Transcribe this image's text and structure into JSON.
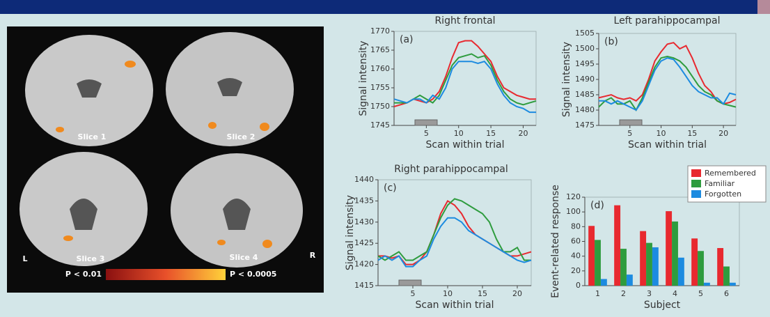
{
  "brain_panel": {
    "slice_labels": [
      "Slice 1",
      "Slice 2",
      "Slice 3",
      "Slice 4"
    ],
    "left": "L",
    "right": "R",
    "p_low": "P < 0.01",
    "p_high": "P < 0.0005"
  },
  "chart_data": [
    {
      "type": "line",
      "title": "Right frontal",
      "panel_label": "(a)",
      "x_label": "Scan within trial",
      "y_label": "Signal intensity",
      "x": [
        0,
        1,
        2,
        3,
        4,
        5,
        6,
        7,
        8,
        9,
        10,
        11,
        12,
        13,
        14,
        15,
        16,
        17,
        18,
        19,
        20,
        21,
        22
      ],
      "xlim": [
        0,
        22
      ],
      "xticks": [
        5,
        10,
        15,
        20
      ],
      "ylim": [
        1745,
        1770
      ],
      "yticks": [
        1745,
        1750,
        1755,
        1760,
        1765,
        1770
      ],
      "series": [
        {
          "color": "#e8292f",
          "values": [
            1750,
            1750.5,
            1751,
            1752,
            1751.5,
            1751,
            1752,
            1754,
            1758,
            1763,
            1767,
            1767.5,
            1767.5,
            1766,
            1764,
            1762,
            1758,
            1755,
            1754,
            1753,
            1752.5,
            1752,
            1752
          ]
        },
        {
          "color": "#2e9c3e",
          "values": [
            1751,
            1751,
            1751,
            1752,
            1753,
            1752,
            1751,
            1753,
            1757,
            1761,
            1763,
            1763.5,
            1764,
            1763,
            1763.5,
            1761,
            1757,
            1754,
            1752,
            1751,
            1750.5,
            1751,
            1751.5
          ]
        },
        {
          "color": "#1c8be0",
          "values": [
            1752,
            1751.5,
            1751,
            1752,
            1752,
            1751,
            1753,
            1752,
            1755,
            1760,
            1762,
            1762,
            1762,
            1761.5,
            1762,
            1760,
            1756,
            1753,
            1751,
            1750,
            1749.5,
            1748.5,
            1748.5
          ]
        }
      ]
    },
    {
      "type": "line",
      "title": "Left parahippocampal",
      "panel_label": "(b)",
      "x_label": "Scan within trial",
      "y_label": "Signal intensity",
      "x": [
        0,
        1,
        2,
        3,
        4,
        5,
        6,
        7,
        8,
        9,
        10,
        11,
        12,
        13,
        14,
        15,
        16,
        17,
        18,
        19,
        20,
        21,
        22
      ],
      "xlim": [
        0,
        22
      ],
      "xticks": [
        5,
        10,
        15,
        20
      ],
      "ylim": [
        1475,
        1505
      ],
      "yticks": [
        1475,
        1480,
        1485,
        1490,
        1495,
        1500,
        1505
      ],
      "series": [
        {
          "color": "#e8292f",
          "values": [
            1484,
            1484.5,
            1485,
            1484,
            1483.5,
            1484,
            1483,
            1485,
            1490,
            1496,
            1499,
            1501.5,
            1502,
            1500,
            1501,
            1497,
            1492,
            1488,
            1486,
            1483,
            1482,
            1482.5,
            1483.5
          ]
        },
        {
          "color": "#2e9c3e",
          "values": [
            1481,
            1483,
            1484,
            1482,
            1482,
            1483,
            1480,
            1484,
            1489,
            1494,
            1497,
            1497.5,
            1497,
            1496,
            1494,
            1491,
            1488,
            1486,
            1485,
            1483,
            1482,
            1481.5,
            1481
          ]
        },
        {
          "color": "#1c8be0",
          "values": [
            1483,
            1483,
            1482,
            1483,
            1482,
            1481,
            1480,
            1483,
            1488,
            1493,
            1496,
            1497,
            1496.5,
            1494,
            1491,
            1488,
            1486,
            1485,
            1484,
            1484,
            1482,
            1485.5,
            1485
          ]
        }
      ]
    },
    {
      "type": "line",
      "title": "Right parahippocampal",
      "panel_label": "(c)",
      "x_label": "Scan within trial",
      "y_label": "Signal intensity",
      "x": [
        0,
        1,
        2,
        3,
        4,
        5,
        6,
        7,
        8,
        9,
        10,
        11,
        12,
        13,
        14,
        15,
        16,
        17,
        18,
        19,
        20,
        21,
        22
      ],
      "xlim": [
        0,
        22
      ],
      "xticks": [
        5,
        10,
        15,
        20
      ],
      "ylim": [
        1415,
        1440
      ],
      "yticks": [
        1415,
        1420,
        1425,
        1430,
        1435,
        1440
      ],
      "series": [
        {
          "color": "#e8292f",
          "values": [
            1422,
            1422,
            1421.5,
            1422,
            1420,
            1420,
            1421,
            1423,
            1427,
            1432,
            1435,
            1434,
            1432,
            1429,
            1427,
            1426,
            1425,
            1424,
            1423,
            1422,
            1422,
            1422.5,
            1423
          ]
        },
        {
          "color": "#2e9c3e",
          "values": [
            1422,
            1421,
            1422,
            1423,
            1421,
            1421,
            1422,
            1423,
            1427,
            1431,
            1434,
            1435.5,
            1435,
            1434,
            1433,
            1432,
            1430,
            1426,
            1423,
            1423,
            1424,
            1421,
            1421
          ]
        },
        {
          "color": "#1c8be0",
          "values": [
            1421,
            1422,
            1421,
            1422,
            1419.5,
            1419.5,
            1421,
            1422,
            1426,
            1429,
            1431,
            1431,
            1430,
            1428,
            1427,
            1426,
            1425,
            1424,
            1423,
            1422,
            1421,
            1420.5,
            1421
          ]
        }
      ]
    },
    {
      "type": "bar",
      "panel_label": "(d)",
      "x_label": "Subject",
      "y_label": "Event-related response",
      "categories": [
        "1",
        "2",
        "3",
        "4",
        "5",
        "6"
      ],
      "ylim": [
        0,
        120
      ],
      "yticks": [
        0,
        20,
        40,
        60,
        80,
        100,
        120
      ],
      "series": [
        {
          "name": "Remembered",
          "color": "#e8292f",
          "values": [
            81,
            109,
            74,
            101,
            64,
            51
          ]
        },
        {
          "name": "Familiar",
          "color": "#2e9c3e",
          "values": [
            62,
            50,
            58,
            87,
            47,
            26
          ]
        },
        {
          "name": "Forgotten",
          "color": "#1c8be0",
          "values": [
            9,
            15,
            52,
            38,
            4,
            4
          ]
        }
      ]
    }
  ]
}
